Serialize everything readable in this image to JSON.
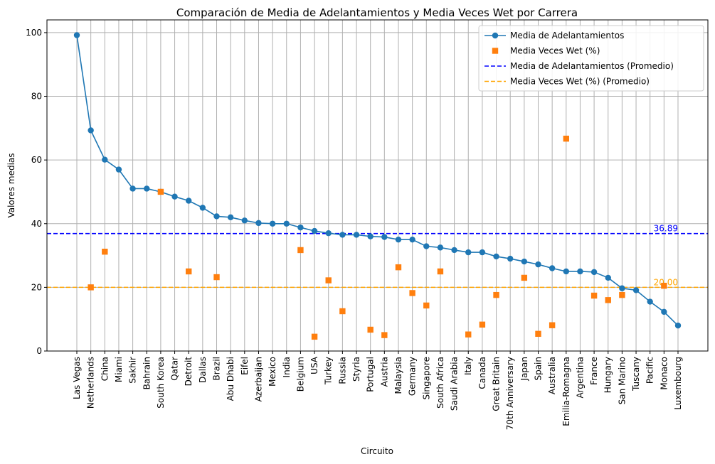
{
  "chart_data": {
    "type": "line",
    "title": "Comparación de Media de Adelantamientos y Media Veces Wet por Carrera",
    "xlabel": "Circuito",
    "ylabel": "Valores medias",
    "ylim": [
      0,
      104
    ],
    "yticks": [
      0,
      20,
      40,
      60,
      80,
      100
    ],
    "grid": true,
    "legend_position": "top-right",
    "categories": [
      "Las Vegas",
      "Netherlands",
      "China",
      "Miami",
      "Sakhir",
      "Bahrain",
      "South Korea",
      "Qatar",
      "Detroit",
      "Dallas",
      "Brazil",
      "Abu Dhabi",
      "Eifel",
      "Azerbaijan",
      "Mexico",
      "India",
      "Belgium",
      "USA",
      "Turkey",
      "Russia",
      "Styria",
      "Portugal",
      "Austria",
      "Malaysia",
      "Germany",
      "Singapore",
      "South Africa",
      "Saudi Arabia",
      "Italy",
      "Canada",
      "Great Britain",
      "70th Anniversary",
      "Japan",
      "Spain",
      "Australia",
      "Emilia-Romagna",
      "Argentina",
      "France",
      "Hungary",
      "San Marino",
      "Tuscany",
      "Pacific",
      "Monaco",
      "Luxembourg"
    ],
    "series": [
      {
        "name": "Media de Adelantamientos",
        "kind": "line-marker",
        "color": "#1f77b4",
        "values": [
          99.2,
          69.3,
          60.1,
          57.0,
          51.0,
          51.0,
          50.0,
          48.5,
          47.2,
          45.0,
          42.3,
          42.0,
          41.0,
          40.2,
          40.0,
          40.0,
          38.8,
          37.7,
          37.0,
          36.5,
          36.5,
          36.0,
          35.8,
          35.0,
          35.0,
          32.9,
          32.5,
          31.7,
          31.0,
          31.0,
          29.7,
          29.0,
          28.1,
          27.2,
          26.0,
          25.0,
          25.0,
          24.8,
          23.0,
          19.7,
          19.1,
          15.5,
          12.3,
          8.0
        ]
      },
      {
        "name": "Media Veces Wet (%)",
        "kind": "marker",
        "color": "#ff7f0e",
        "values": [
          null,
          20.0,
          31.2,
          null,
          null,
          null,
          50.0,
          null,
          25.0,
          null,
          23.2,
          null,
          null,
          null,
          null,
          null,
          31.7,
          4.5,
          22.2,
          12.5,
          null,
          6.7,
          5.0,
          26.3,
          18.2,
          14.3,
          25.0,
          null,
          5.2,
          8.3,
          17.6,
          null,
          23.0,
          5.4,
          8.1,
          66.7,
          null,
          17.4,
          16.0,
          17.6,
          null,
          null,
          20.5,
          null
        ]
      }
    ],
    "reference_lines": [
      {
        "name": "Media de Adelantamientos (Promedio)",
        "value": 36.89,
        "label": "36.89",
        "color": "#0000ff"
      },
      {
        "name": "Media Veces Wet (%) (Promedio)",
        "value": 20.0,
        "label": "20.00",
        "color": "#ffa500"
      }
    ]
  }
}
